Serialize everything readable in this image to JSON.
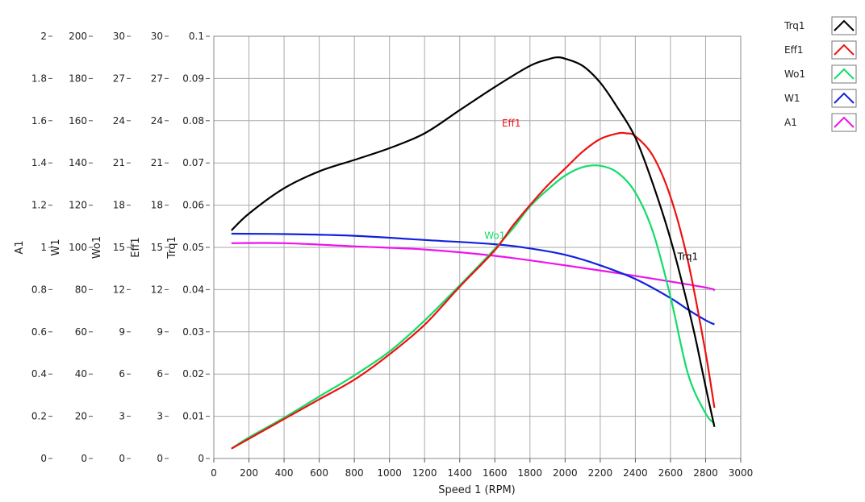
{
  "chart_data": {
    "type": "line",
    "xlabel": "Speed 1 (RPM)",
    "xlim": [
      0,
      3000
    ],
    "x_ticks": [
      "0",
      "200",
      "400",
      "600",
      "800",
      "1000",
      "1200",
      "1400",
      "1600",
      "1800",
      "2000",
      "2200",
      "2400",
      "2600",
      "2800",
      "3000"
    ],
    "grid": true,
    "legend_position": "top-right",
    "y_axes": [
      {
        "label": "A1",
        "ylim": [
          0,
          2
        ],
        "ticks": [
          "0",
          "0.2",
          "0.4",
          "0.6",
          "0.8",
          "1",
          "1.2",
          "1.4",
          "1.6",
          "1.8",
          "2"
        ]
      },
      {
        "label": "W1",
        "ylim": [
          0,
          200
        ],
        "ticks": [
          "0",
          "20",
          "40",
          "60",
          "80",
          "100",
          "120",
          "140",
          "160",
          "180",
          "200"
        ]
      },
      {
        "label": "Wo1",
        "ylim": [
          0,
          30
        ],
        "ticks": [
          "0",
          "3",
          "6",
          "9",
          "12",
          "15",
          "18",
          "21",
          "24",
          "27",
          "30"
        ]
      },
      {
        "label": "Eff1",
        "ylim": [
          0,
          30
        ],
        "ticks": [
          "0",
          "3",
          "6",
          "9",
          "12",
          "15",
          "18",
          "21",
          "24",
          "27",
          "30"
        ]
      },
      {
        "label": "Trq1",
        "ylim": [
          0,
          0.1
        ],
        "ticks": [
          "0",
          "0.01",
          "0.02",
          "0.03",
          "0.04",
          "0.05",
          "0.06",
          "0.07",
          "0.08",
          "0.09",
          "0.1"
        ]
      }
    ],
    "series": [
      {
        "name": "Trq1",
        "color": "#000000",
        "axis": "Trq1",
        "label_at": [
          2640,
          0.047
        ],
        "x": [
          100,
          200,
          400,
          600,
          800,
          1000,
          1200,
          1400,
          1600,
          1800,
          1900,
          1950,
          2000,
          2100,
          2200,
          2300,
          2400,
          2500,
          2600,
          2700,
          2750,
          2800,
          2850
        ],
        "y": [
          0.054,
          0.058,
          0.064,
          0.068,
          0.0707,
          0.0735,
          0.077,
          0.0825,
          0.088,
          0.093,
          0.0945,
          0.095,
          0.0947,
          0.093,
          0.089,
          0.083,
          0.076,
          0.065,
          0.052,
          0.036,
          0.027,
          0.017,
          0.0075
        ]
      },
      {
        "name": "Eff1",
        "color": "#ee1111",
        "axis": "Eff1",
        "label_at": [
          1640,
          23.6
        ],
        "x": [
          100,
          200,
          400,
          600,
          800,
          1000,
          1200,
          1400,
          1600,
          1700,
          1800,
          1900,
          2000,
          2100,
          2200,
          2300,
          2350,
          2400,
          2500,
          2600,
          2700,
          2800,
          2850
        ],
        "y": [
          0.7,
          1.4,
          2.8,
          4.2,
          5.6,
          7.4,
          9.5,
          12.2,
          14.8,
          16.5,
          18.0,
          19.4,
          20.6,
          21.8,
          22.7,
          23.1,
          23.1,
          22.9,
          21.5,
          18.6,
          14.0,
          7.5,
          3.6
        ]
      },
      {
        "name": "Wo1",
        "color": "#11dd66",
        "axis": "Wo1",
        "label_at": [
          1540,
          15.6
        ],
        "x": [
          100,
          200,
          400,
          600,
          800,
          1000,
          1200,
          1400,
          1600,
          1700,
          1800,
          1900,
          2000,
          2100,
          2200,
          2300,
          2400,
          2500,
          2600,
          2700,
          2800,
          2850
        ],
        "y": [
          0.7,
          1.5,
          2.9,
          4.4,
          5.9,
          7.6,
          9.8,
          12.3,
          14.9,
          16.3,
          17.9,
          19.1,
          20.1,
          20.7,
          20.8,
          20.3,
          18.9,
          16.1,
          11.5,
          6.0,
          3.2,
          2.5
        ]
      },
      {
        "name": "W1",
        "color": "#1122dd",
        "axis": "W1",
        "x": [
          100,
          400,
          800,
          1200,
          1600,
          1800,
          2000,
          2200,
          2400,
          2600,
          2700,
          2800,
          2850
        ],
        "y": [
          106.5,
          106.3,
          105.5,
          103.5,
          101.5,
          99.5,
          96.5,
          91.5,
          85,
          76,
          70.5,
          65.5,
          63.5
        ]
      },
      {
        "name": "A1",
        "color": "#ee11ee",
        "axis": "A1",
        "x": [
          100,
          400,
          800,
          1200,
          1600,
          2000,
          2400,
          2800,
          2850
        ],
        "y": [
          1.02,
          1.02,
          1.005,
          0.99,
          0.96,
          0.915,
          0.865,
          0.81,
          0.795
        ]
      }
    ]
  }
}
